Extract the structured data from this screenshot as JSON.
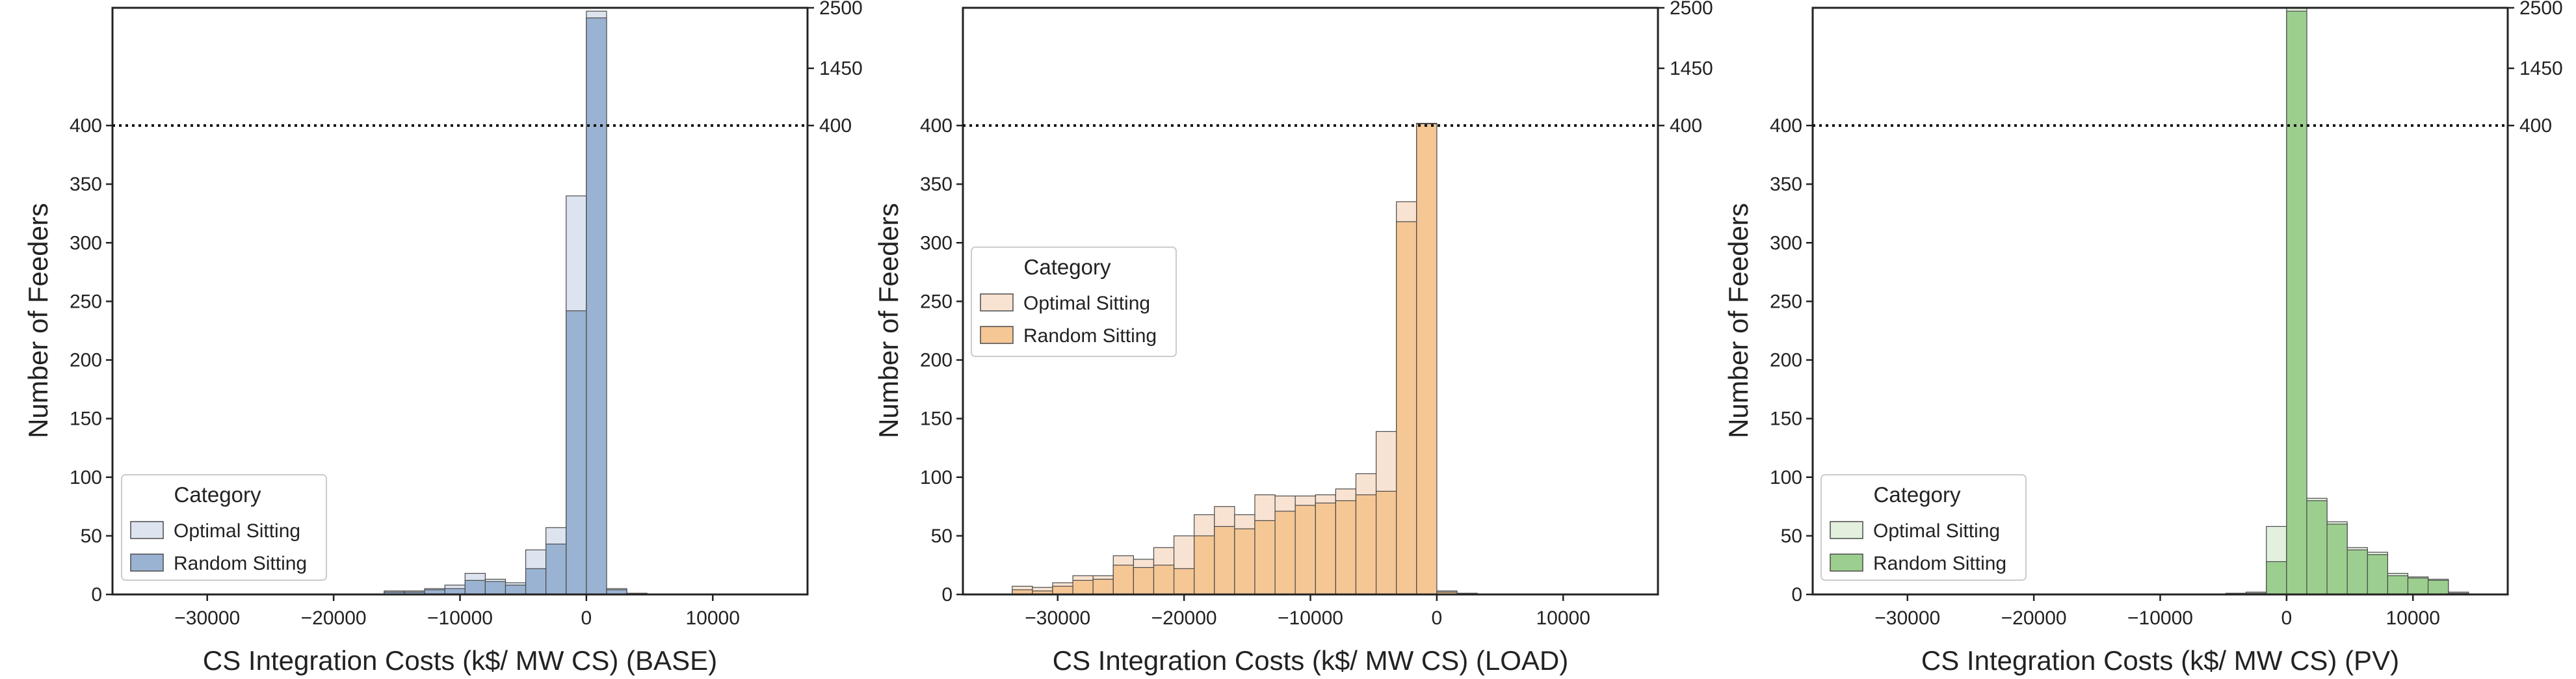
{
  "chart_data": [
    {
      "type": "bar",
      "title": "",
      "xlabel": "CS Integration Costs (k$/ MW CS) (BASE)",
      "ylabel": "Number of Feeders",
      "xlim": [
        -37500,
        17500
      ],
      "ylim": [
        0,
        500
      ],
      "y_break": 400,
      "xticks": [
        -30000,
        -20000,
        -10000,
        0,
        10000
      ],
      "xtick_labels": [
        "−30000",
        "−20000",
        "−10000",
        "0",
        "10000"
      ],
      "yticks": [
        0,
        50,
        100,
        150,
        200,
        250,
        300,
        350,
        400
      ],
      "yticks_right": [
        "400",
        "1450",
        "2500"
      ],
      "colors": {
        "optimal": "#dde4ef",
        "random": "#9bb3d2",
        "edge": "#4a4a4a"
      },
      "legend": {
        "title": "Category",
        "position": "lower-left",
        "entries": [
          "Optimal Sitting",
          "Random Sitting"
        ]
      },
      "bin_width": 1600,
      "bins_left": [
        -17600,
        -16000,
        -14400,
        -12800,
        -11200,
        -9600,
        -8000,
        -6400,
        -4800,
        -3200,
        -1600,
        0,
        1600,
        3200
      ],
      "series": [
        {
          "name": "Optimal Sitting",
          "values": [
            0,
            3,
            3,
            5,
            8,
            18,
            13,
            10,
            38,
            57,
            340,
            2440,
            5,
            1
          ]
        },
        {
          "name": "Random Sitting",
          "values": [
            0,
            2,
            2,
            4,
            5,
            12,
            11,
            8,
            22,
            43,
            242,
            2320,
            4,
            1
          ]
        }
      ]
    },
    {
      "type": "bar",
      "title": "",
      "xlabel": "CS Integration Costs (k$/ MW CS) (LOAD)",
      "ylabel": "Number of Feeders",
      "xlim": [
        -37500,
        17500
      ],
      "ylim": [
        0,
        500
      ],
      "y_break": 400,
      "xticks": [
        -30000,
        -20000,
        -10000,
        0,
        10000
      ],
      "xtick_labels": [
        "−30000",
        "−20000",
        "−10000",
        "0",
        "10000"
      ],
      "yticks": [
        0,
        50,
        100,
        150,
        200,
        250,
        300,
        350,
        400
      ],
      "yticks_right": [
        "400",
        "1450",
        "2500"
      ],
      "colors": {
        "optimal": "#f8e3d2",
        "random": "#f5c795",
        "edge": "#4a4a4a"
      },
      "legend": {
        "title": "Category",
        "position": "center-left",
        "entries": [
          "Optimal Sitting",
          "Random Sitting"
        ]
      },
      "bin_width": 1600,
      "bins_left": [
        -33600,
        -32000,
        -30400,
        -28800,
        -27200,
        -25600,
        -24000,
        -22400,
        -20800,
        -19200,
        -17600,
        -16000,
        -14400,
        -12800,
        -11200,
        -9600,
        -8000,
        -6400,
        -4800,
        -3200,
        -1600,
        0,
        1600
      ],
      "series": [
        {
          "name": "Optimal Sitting",
          "values": [
            7,
            6,
            10,
            16,
            16,
            33,
            30,
            40,
            50,
            68,
            75,
            68,
            85,
            84,
            84,
            85,
            90,
            103,
            139,
            335,
            440,
            3,
            1
          ]
        },
        {
          "name": "Random Sitting",
          "values": [
            4,
            3,
            7,
            12,
            13,
            25,
            23,
            25,
            22,
            50,
            58,
            56,
            63,
            71,
            76,
            78,
            80,
            85,
            88,
            318,
            430,
            2,
            1
          ]
        }
      ]
    },
    {
      "type": "bar",
      "title": "",
      "xlabel": "CS Integration Costs (k$/ MW CS) (PV)",
      "ylabel": "Number of Feeders",
      "xlim": [
        -37500,
        17500
      ],
      "ylim": [
        0,
        500
      ],
      "y_break": 400,
      "xticks": [
        -30000,
        -20000,
        -10000,
        0,
        10000
      ],
      "xtick_labels": [
        "−30000",
        "−20000",
        "−10000",
        "0",
        "10000"
      ],
      "yticks": [
        0,
        50,
        100,
        150,
        200,
        250,
        300,
        350,
        400
      ],
      "yticks_right": [
        "400",
        "1450",
        "2500"
      ],
      "colors": {
        "optimal": "#e2f0dd",
        "random": "#9ccf8f",
        "edge": "#4a4a4a"
      },
      "legend": {
        "title": "Category",
        "position": "lower-left",
        "entries": [
          "Optimal Sitting",
          "Random Sitting"
        ]
      },
      "bin_width": 1600,
      "bins_left": [
        -4800,
        -3200,
        -1600,
        0,
        1600,
        3200,
        4800,
        6400,
        8000,
        9600,
        11200,
        12800
      ],
      "series": [
        {
          "name": "Optimal Sitting",
          "values": [
            1,
            2,
            58,
            2600,
            82,
            62,
            40,
            36,
            18,
            15,
            13,
            2
          ]
        },
        {
          "name": "Random Sitting",
          "values": [
            1,
            1,
            28,
            2440,
            80,
            60,
            38,
            34,
            16,
            14,
            12,
            1
          ]
        }
      ]
    }
  ]
}
